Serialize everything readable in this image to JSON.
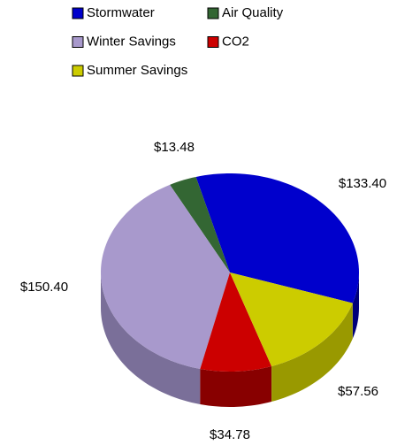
{
  "chart_data": {
    "type": "pie3d",
    "categories": [
      "Stormwater",
      "Air Quality",
      "Winter Savings",
      "CO2",
      "Summer Savings"
    ],
    "values": [
      133.4,
      13.48,
      150.4,
      34.78,
      57.56
    ],
    "value_labels": [
      "$133.40",
      "$13.48",
      "$150.40",
      "$34.78",
      "$57.56"
    ],
    "colors": [
      "#0000cc",
      "#336633",
      "#a899cc",
      "#cc0000",
      "#cccc00"
    ],
    "side_colors": [
      "#00007a",
      "#1f3f1f",
      "#7a6f99",
      "#880000",
      "#999900"
    ],
    "legend": "top"
  }
}
